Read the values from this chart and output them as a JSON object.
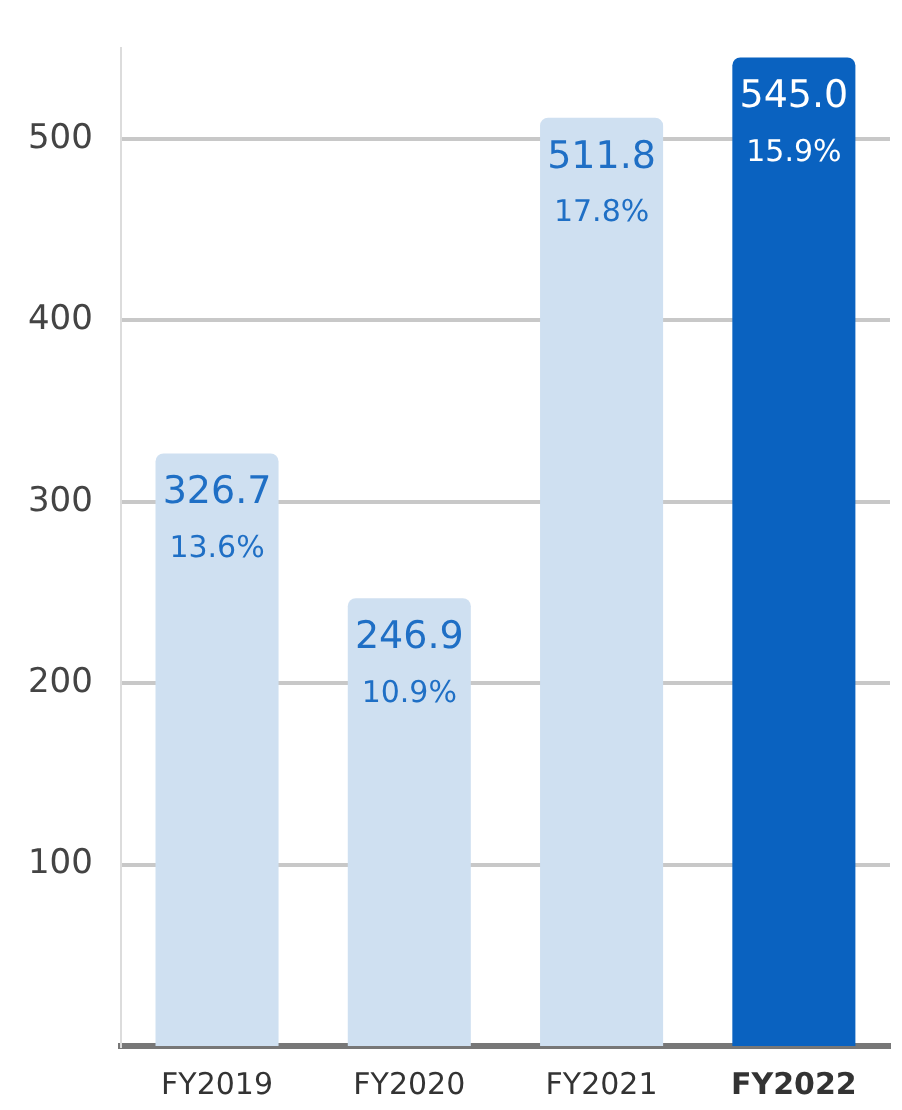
{
  "chart_data": {
    "type": "bar",
    "categories": [
      "FY2019",
      "FY2020",
      "FY2021",
      "FY2022"
    ],
    "values": [
      326.7,
      246.9,
      511.8,
      545.0
    ],
    "colors": [
      "#cfe0f1",
      "#cfe0f1",
      "#cfe0f1",
      "#0a62c0"
    ],
    "value_labels": [
      "326.7",
      "246.9",
      "511.8",
      "545.0"
    ],
    "annotations": [
      {
        "text": "13.6%",
        "x": "FY2019",
        "y": 326.7
      },
      {
        "text": "10.9%",
        "x": "FY2020",
        "y": 246.9
      },
      {
        "text": "17.8%",
        "x": "FY2021",
        "y": 511.8
      },
      {
        "text": "15.9%",
        "x": "FY2022",
        "y": 545.0
      }
    ],
    "ylim": [
      0,
      550
    ],
    "yticks": [
      100,
      200,
      300,
      400,
      500
    ],
    "grid": "y",
    "legend": false
  }
}
